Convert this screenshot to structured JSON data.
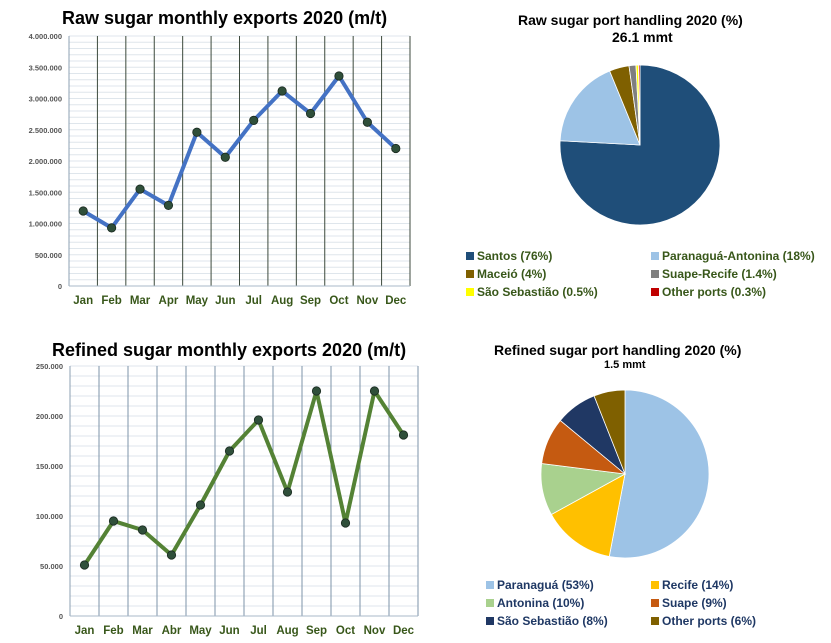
{
  "chart_data": [
    {
      "type": "line",
      "title": "Raw sugar monthly exports 2020 (m/t)",
      "categories": [
        "Jan",
        "Feb",
        "Mar",
        "Apr",
        "May",
        "Jun",
        "Jul",
        "Aug",
        "Sep",
        "Oct",
        "Nov",
        "Dec"
      ],
      "values": [
        1200000,
        930000,
        1550000,
        1290000,
        2460000,
        2060000,
        2650000,
        3120000,
        2760000,
        3360000,
        2620000,
        2200000
      ],
      "ylim": [
        0,
        4000000
      ],
      "yticks": [
        "0",
        "500.000",
        "1.000.000",
        "1.500.000",
        "2.000.000",
        "2.500.000",
        "3.000.000",
        "3.500.000",
        "4.000.000"
      ],
      "line_color": "#4472c4",
      "marker_color": "#2f4f3a",
      "label_color": "#38571a",
      "grid": true
    },
    {
      "type": "pie",
      "title": "Raw sugar port handling 2020 (%)",
      "subtitle": "26.1 mmt",
      "legend_color": "#38571a",
      "slices": [
        {
          "label": "Santos (76%)",
          "value": 76,
          "color": "#1f4e79"
        },
        {
          "label": "Paranaguá-Antonina (18%)",
          "value": 18,
          "color": "#9dc3e6"
        },
        {
          "label": "Maceió (4%)",
          "value": 4,
          "color": "#7f6000"
        },
        {
          "label": "Suape-Recife (1.4%)",
          "value": 1.4,
          "color": "#7f7f7f"
        },
        {
          "label": "São Sebastião (0.5%)",
          "value": 0.5,
          "color": "#ffff00"
        },
        {
          "label": "Other ports (0.3%)",
          "value": 0.3,
          "color": "#c00000"
        }
      ]
    },
    {
      "type": "line",
      "title": "Refined sugar monthly exports 2020 (m/t)",
      "categories": [
        "Jan",
        "Feb",
        "Mar",
        "Abr",
        "May",
        "Jun",
        "Jul",
        "Aug",
        "Sep",
        "Oct",
        "Nov",
        "Dec"
      ],
      "values": [
        51000,
        95000,
        86000,
        61000,
        111000,
        165000,
        196000,
        124000,
        225000,
        93000,
        225000,
        181000
      ],
      "ylim": [
        0,
        250000
      ],
      "yticks": [
        "0",
        "50.000",
        "100.000",
        "150.000",
        "200.000",
        "250.000"
      ],
      "line_color": "#548235",
      "marker_color": "#2f4f3a",
      "label_color": "#38571a",
      "grid": true
    },
    {
      "type": "pie",
      "title": "Refined sugar port handling 2020 (%)",
      "subtitle": "1.5 mmt",
      "legend_color": "#1f3864",
      "slices": [
        {
          "label": "Paranaguá (53%)",
          "value": 53,
          "color": "#9dc3e6"
        },
        {
          "label": "Recife (14%)",
          "value": 14,
          "color": "#ffc000"
        },
        {
          "label": "Antonina (10%)",
          "value": 10,
          "color": "#a9d18e"
        },
        {
          "label": "Suape (9%)",
          "value": 9,
          "color": "#c55a11"
        },
        {
          "label": "São Sebastião (8%)",
          "value": 8,
          "color": "#203864"
        },
        {
          "label": "Other ports (6%)",
          "value": 6,
          "color": "#7f6000"
        }
      ]
    }
  ]
}
